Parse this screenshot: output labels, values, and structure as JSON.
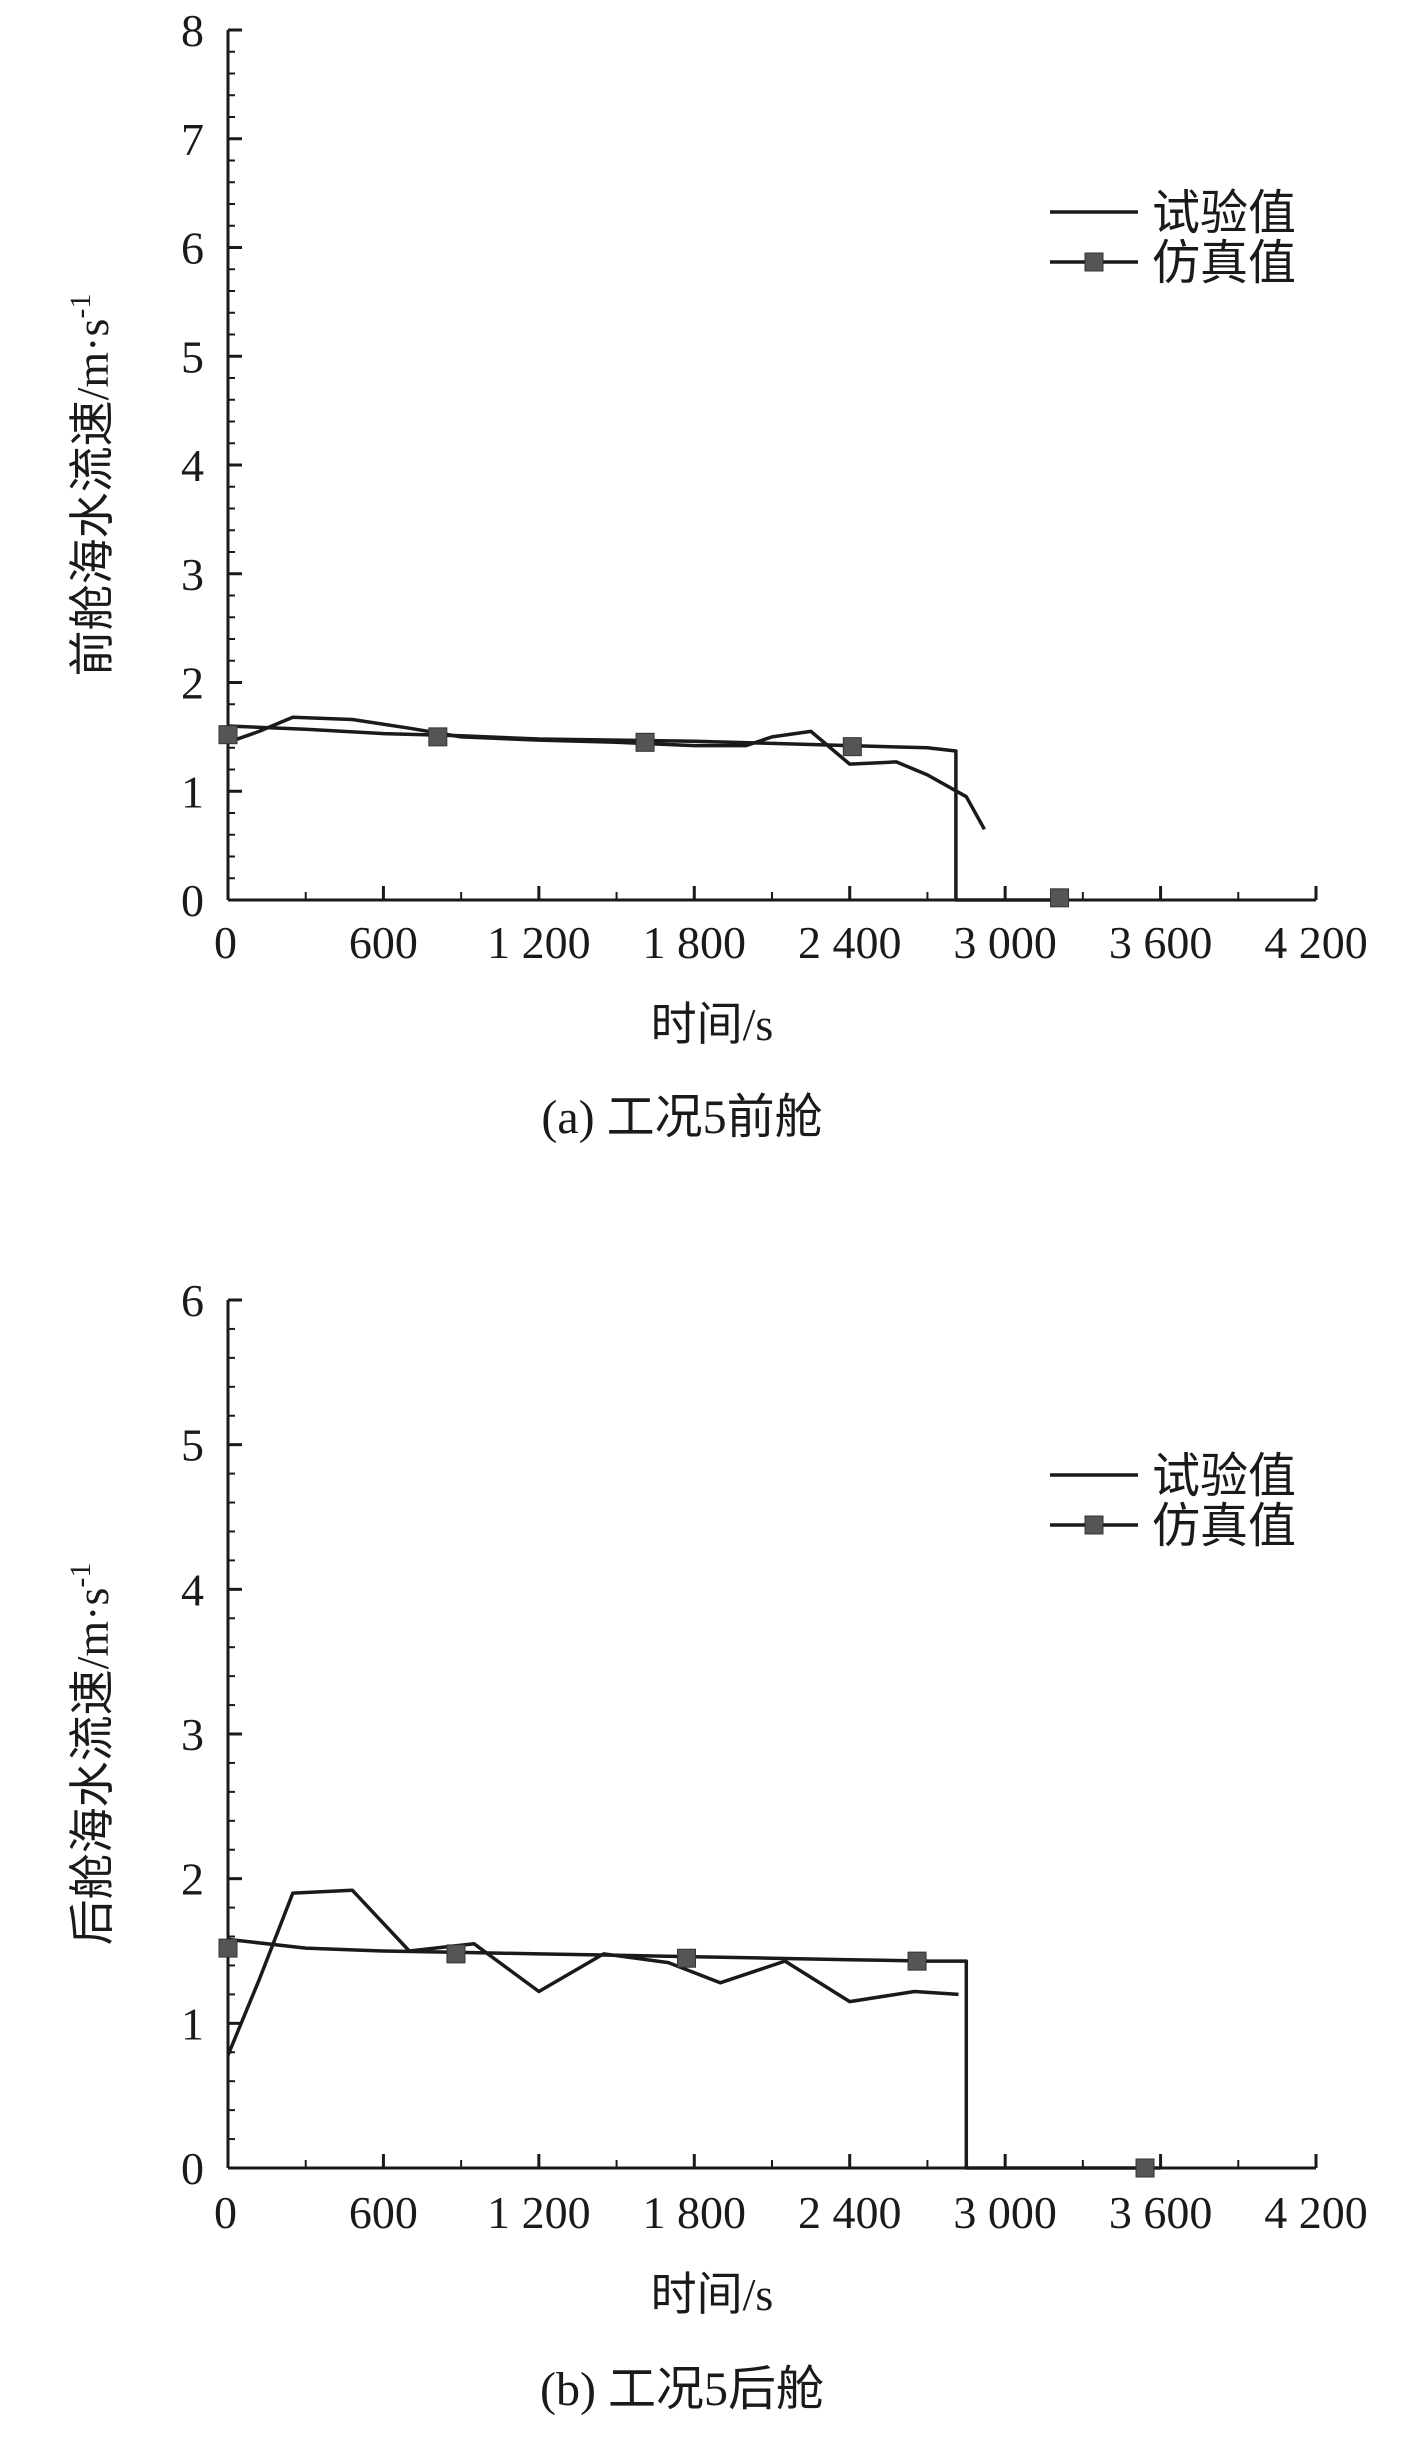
{
  "chart_data": [
    {
      "type": "line",
      "caption": "(a) 工况5前舱",
      "xlabel": "时间/s",
      "ylabel": "前舱海水流速/m·s",
      "ylabel_sup": "-1",
      "xlim": [
        0,
        4200
      ],
      "ylim": [
        0,
        8
      ],
      "xticks": [
        0,
        600,
        1200,
        1800,
        2400,
        3000,
        3600,
        4200
      ],
      "xtick_labels": [
        "0",
        "600",
        "1 200",
        "1 800",
        "2 400",
        "3 000",
        "3 600",
        "4 200"
      ],
      "yticks": [
        0,
        1,
        2,
        3,
        4,
        5,
        6,
        7,
        8
      ],
      "ytick_labels": [
        "0",
        "1",
        "2",
        "3",
        "4",
        "5",
        "6",
        "7",
        "8"
      ],
      "legend_position": "top-right",
      "series": [
        {
          "name": "试验值",
          "style": "line",
          "x": [
            0,
            120,
            250,
            480,
            700,
            900,
            1200,
            1500,
            1800,
            2000,
            2100,
            2250,
            2400,
            2580,
            2700,
            2850,
            2920
          ],
          "y": [
            1.45,
            1.55,
            1.68,
            1.66,
            1.58,
            1.5,
            1.47,
            1.45,
            1.42,
            1.42,
            1.5,
            1.55,
            1.25,
            1.27,
            1.15,
            0.95,
            0.65
          ]
        },
        {
          "name": "仿真值",
          "style": "line-square-marker",
          "x": [
            0,
            300,
            600,
            900,
            1200,
            1500,
            1800,
            2100,
            2400,
            2700,
            2810,
            2810,
            3200
          ],
          "y": [
            1.6,
            1.57,
            1.53,
            1.51,
            1.48,
            1.47,
            1.46,
            1.44,
            1.42,
            1.4,
            1.37,
            0,
            0
          ],
          "markers": [
            [
              0,
              1.52
            ],
            [
              810,
              1.5
            ],
            [
              1610,
              1.45
            ],
            [
              2410,
              1.41
            ],
            [
              3210,
              0.02
            ]
          ]
        }
      ]
    },
    {
      "type": "line",
      "caption": "(b) 工况5后舱",
      "xlabel": "时间/s",
      "ylabel": "后舱海水流速/m·s",
      "ylabel_sup": "-1",
      "xlim": [
        0,
        4200
      ],
      "ylim": [
        0,
        6
      ],
      "xticks": [
        0,
        600,
        1200,
        1800,
        2400,
        3000,
        3600,
        4200
      ],
      "xtick_labels": [
        "0",
        "600",
        "1 200",
        "1 800",
        "2 400",
        "3 000",
        "3 600",
        "4 200"
      ],
      "yticks": [
        0,
        1,
        2,
        3,
        4,
        5,
        6
      ],
      "ytick_labels": [
        "0",
        "1",
        "2",
        "3",
        "4",
        "5",
        "6"
      ],
      "legend_position": "top-right",
      "series": [
        {
          "name": "试验值",
          "style": "line",
          "x": [
            0,
            120,
            250,
            480,
            700,
            950,
            1200,
            1450,
            1700,
            1900,
            2150,
            2400,
            2650,
            2820
          ],
          "y": [
            0.78,
            1.3,
            1.9,
            1.92,
            1.5,
            1.55,
            1.22,
            1.48,
            1.42,
            1.28,
            1.43,
            1.15,
            1.22,
            1.2
          ]
        },
        {
          "name": "仿真值",
          "style": "line-square-marker",
          "x": [
            0,
            300,
            600,
            900,
            1200,
            1500,
            1800,
            2100,
            2400,
            2700,
            2850,
            2850,
            3600
          ],
          "y": [
            1.58,
            1.52,
            1.5,
            1.49,
            1.48,
            1.47,
            1.46,
            1.45,
            1.44,
            1.43,
            1.43,
            0,
            0
          ],
          "markers": [
            [
              0,
              1.52
            ],
            [
              880,
              1.48
            ],
            [
              1770,
              1.45
            ],
            [
              2660,
              1.43
            ],
            [
              3540,
              0.0
            ]
          ]
        }
      ]
    }
  ]
}
